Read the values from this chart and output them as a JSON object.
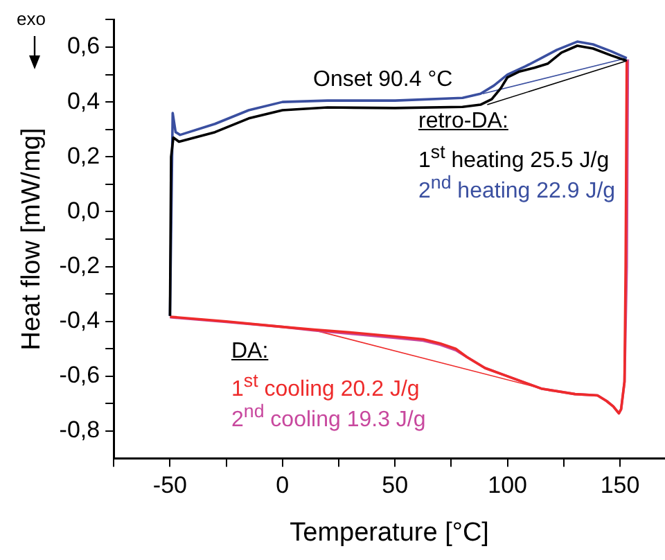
{
  "chart_data": {
    "type": "line",
    "xlabel": "Temperature [°C]",
    "ylabel": "Heat flow [mW/mg]",
    "annotations": [
      "Onset 90.4 °C",
      "retro-DA:",
      "DA:",
      "exo"
    ],
    "xlim": [
      -75,
      170
    ],
    "xticks": [
      {
        "value": -75,
        "label": null
      },
      -50,
      {
        "value": -25,
        "label": null
      },
      0,
      {
        "value": 25,
        "label": null
      },
      50,
      {
        "value": 75,
        "label": null
      },
      100,
      {
        "value": 125,
        "label": null
      },
      150
    ],
    "ylim": [
      -0.9,
      0.7
    ],
    "yticks": [
      {
        "value": -0.8,
        "label": "-0,8"
      },
      {
        "value": -0.7,
        "label": null
      },
      {
        "value": -0.6,
        "label": "-0,6"
      },
      {
        "value": -0.5,
        "label": null
      },
      {
        "value": -0.4,
        "label": "-0,4"
      },
      {
        "value": -0.3,
        "label": null
      },
      {
        "value": -0.2,
        "label": "-0,2"
      },
      {
        "value": -0.1,
        "label": null
      },
      {
        "value": 0,
        "label": "0,0"
      },
      {
        "value": 0.1,
        "label": null
      },
      {
        "value": 0.2,
        "label": "0,2"
      },
      {
        "value": 0.3,
        "label": null
      },
      {
        "value": 0.4,
        "label": "0,4"
      },
      {
        "value": 0.5,
        "label": null
      },
      {
        "value": 0.6,
        "label": "0,6"
      },
      {
        "value": 0.7,
        "label": null
      }
    ],
    "grid": false,
    "legend": false,
    "marker": "none",
    "line_style": "solid",
    "series": [
      {
        "name": "1$^{st}$ heating 25.5 J/g",
        "color": "#000000",
        "x": [
          -50,
          -49.5,
          -48.5,
          -46,
          -30,
          -15,
          0,
          20,
          50,
          80,
          88,
          93,
          97,
          100,
          105,
          112,
          118,
          124,
          131,
          138,
          146,
          153
        ],
        "values": [
          -0.38,
          0.2,
          0.27,
          0.255,
          0.29,
          0.34,
          0.37,
          0.38,
          0.378,
          0.382,
          0.39,
          0.41,
          0.45,
          0.49,
          0.51,
          0.525,
          0.54,
          0.58,
          0.605,
          0.595,
          0.57,
          0.55
        ]
      },
      {
        "name": "2$^{nd}$ heating 22.9 J/g",
        "color": "#3a4fa0",
        "x": [
          -50,
          -48.8,
          -47.5,
          -45.5,
          -30,
          -15,
          0,
          20,
          50,
          80,
          88,
          94,
          100,
          108,
          115,
          122,
          131,
          138,
          146,
          153
        ],
        "values": [
          -0.38,
          0.36,
          0.29,
          0.28,
          0.32,
          0.37,
          0.4,
          0.405,
          0.405,
          0.415,
          0.43,
          0.46,
          0.5,
          0.53,
          0.56,
          0.59,
          0.62,
          0.61,
          0.585,
          0.56
        ]
      },
      {
        "name": "1$^{st}$ cooling 20.2 J/g",
        "color": "#ee2b2b",
        "x": [
          153,
          152.5,
          152,
          150.5,
          149.5,
          147,
          144,
          140,
          130,
          115,
          100,
          90,
          82,
          77,
          70,
          62.5,
          50,
          30,
          14,
          0,
          -25,
          -50
        ],
        "values": [
          0.55,
          -0.2,
          -0.62,
          -0.72,
          -0.735,
          -0.71,
          -0.69,
          -0.67,
          -0.665,
          -0.645,
          -0.6,
          -0.57,
          -0.53,
          -0.5,
          -0.48,
          -0.465,
          -0.455,
          -0.44,
          -0.43,
          -0.42,
          -0.4,
          -0.383
        ]
      },
      {
        "name": "2$^{nd}$ cooling 19.3 J/g",
        "color": "#c8489e",
        "x": [
          153.5,
          153,
          152,
          150.5,
          149.5,
          147,
          144,
          140,
          130,
          115,
          100,
          90,
          82,
          77,
          70,
          62.5,
          50,
          30,
          14,
          0,
          -25,
          -50
        ],
        "values": [
          0.555,
          -0.2,
          -0.62,
          -0.72,
          -0.735,
          -0.71,
          -0.69,
          -0.67,
          -0.665,
          -0.645,
          -0.6,
          -0.57,
          -0.53,
          -0.505,
          -0.485,
          -0.47,
          -0.46,
          -0.445,
          -0.433,
          -0.42,
          -0.402,
          -0.385
        ]
      },
      {
        "color": "#000000",
        "x": [
          91,
          153
        ],
        "values": [
          0.39,
          0.55
        ]
      },
      {
        "color": "#3a4fa0",
        "x": [
          89,
          153
        ],
        "values": [
          0.43,
          0.56
        ]
      },
      {
        "color": "#ee2b2b",
        "x": [
          14,
          120
        ],
        "values": [
          -0.432,
          -0.655
        ]
      }
    ]
  }
}
